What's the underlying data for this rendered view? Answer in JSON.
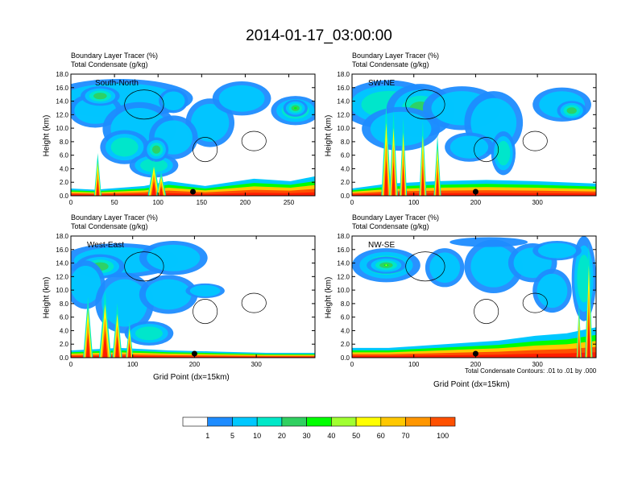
{
  "title": "2014-01-17_03:00:00",
  "chart_data": {
    "type": "heatmap",
    "variable_labels": [
      "Boundary Layer Tracer    (%)",
      "Total Condensate    (g/kg)"
    ],
    "colorbar": {
      "levels": [
        "1",
        "5",
        "10",
        "20",
        "30",
        "40",
        "50",
        "60",
        "70",
        "100"
      ],
      "colors": [
        "#ffffff",
        "#1e8cff",
        "#00c8ff",
        "#00e8c8",
        "#30d060",
        "#00ff00",
        "#a0ff30",
        "#ffff00",
        "#ffc800",
        "#ff9600",
        "#ff5000",
        "#ff1e00"
      ]
    },
    "contour_note": "Total Condensate Contours: .01 to .01 by .000",
    "panels": [
      {
        "name": "South-North",
        "ylabel": "Height (km)",
        "xlabel": "",
        "yticks": [
          "0.0",
          "2.0",
          "4.0",
          "6.0",
          "8.0",
          "10.0",
          "12.0",
          "14.0",
          "16.0",
          "18.0"
        ],
        "xticks": [
          0,
          50,
          100,
          150,
          200,
          250
        ],
        "xlim": [
          0,
          280
        ],
        "ylim": [
          0,
          18
        ],
        "marker_x": 140
      },
      {
        "name": "SW-NE",
        "ylabel": "Height (km)",
        "xlabel": "",
        "yticks": [
          "0.0",
          "2.0",
          "4.0",
          "6.0",
          "8.0",
          "10.0",
          "12.0",
          "14.0",
          "16.0",
          "18.0"
        ],
        "xticks": [
          0,
          100,
          200,
          300
        ],
        "xlim": [
          0,
          395
        ],
        "ylim": [
          0,
          18
        ],
        "marker_x": 200
      },
      {
        "name": "West-East",
        "ylabel": "Height (km)",
        "xlabel": "Grid Point (dx=15km)",
        "yticks": [
          "0.0",
          "2.0",
          "4.0",
          "6.0",
          "8.0",
          "10.0",
          "12.0",
          "14.0",
          "16.0",
          "18.0"
        ],
        "xticks": [
          0,
          100,
          200,
          300
        ],
        "xlim": [
          0,
          395
        ],
        "ylim": [
          0,
          18
        ],
        "marker_x": 200
      },
      {
        "name": "NW-SE",
        "ylabel": "Height (km)",
        "xlabel": "Grid Point (dx=15km)",
        "yticks": [
          "0.0",
          "2.0",
          "4.0",
          "6.0",
          "8.0",
          "10.0",
          "12.0",
          "14.0",
          "16.0",
          "18.0"
        ],
        "xticks": [
          0,
          100,
          200,
          300
        ],
        "xlim": [
          0,
          395
        ],
        "ylim": [
          0,
          18
        ],
        "marker_x": 200
      }
    ]
  }
}
